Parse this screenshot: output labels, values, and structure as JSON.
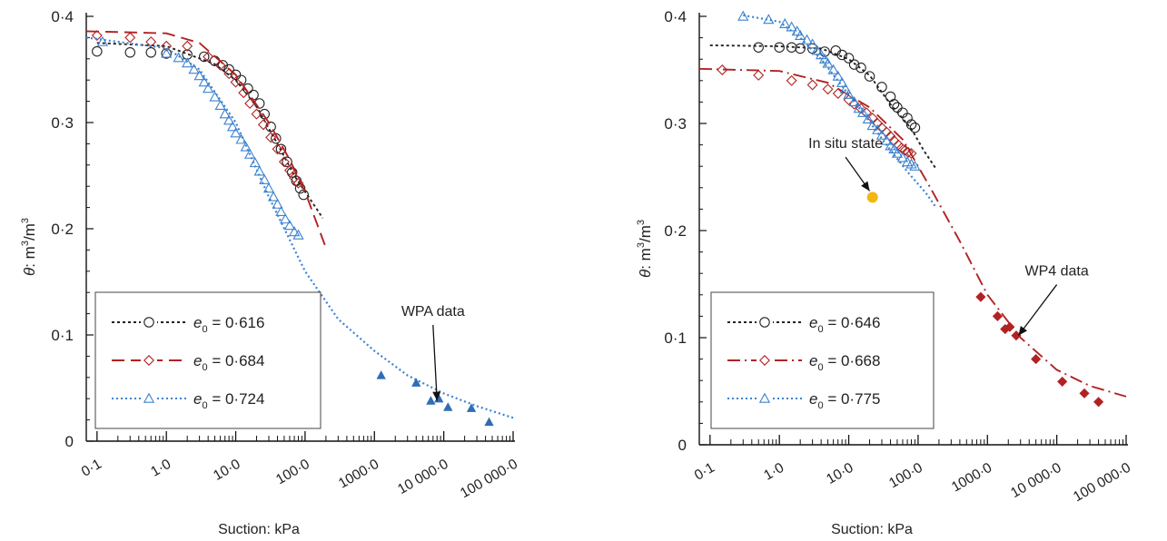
{
  "chart_data": [
    {
      "type": "scatter",
      "xscale": "log",
      "xlim": [
        0.07,
        100000
      ],
      "ylim": [
        0,
        0.4
      ],
      "xlabel": "Suction: kPa",
      "ylabel": "θ: m³/m³",
      "ylabel_parts": {
        "symbol": "θ",
        "unit_base": ": m",
        "unit_exp1": "3",
        "unit_mid": "/m",
        "unit_exp2": "3"
      },
      "xtick_values": [
        0.1,
        1,
        10,
        100,
        1000,
        10000,
        100000
      ],
      "xtick_labels": [
        "0·1",
        "1·0",
        "10·0",
        "100·0",
        "1000·0",
        "10 000·0",
        "100 000·0"
      ],
      "ytick_values": [
        0,
        0.1,
        0.2,
        0.3,
        0.4
      ],
      "ytick_labels": [
        "0",
        "0·1",
        "0·2",
        "0·3",
        "0·4"
      ],
      "legend_position": "lower-left",
      "series": [
        {
          "label_prefix": "e",
          "label_sub": "0",
          "label_value": " = 0·616",
          "color": "#222222",
          "dash": "3,3",
          "marker": "circle",
          "curve": [
            [
              0.1,
              0.375
            ],
            [
              1,
              0.372
            ],
            [
              5,
              0.355
            ],
            [
              10,
              0.34
            ],
            [
              20,
              0.315
            ],
            [
              40,
              0.28
            ],
            [
              70,
              0.25
            ],
            [
              100,
              0.235
            ],
            [
              180,
              0.21
            ]
          ],
          "points": [
            [
              0.1,
              0.367
            ],
            [
              0.3,
              0.366
            ],
            [
              0.6,
              0.366
            ],
            [
              1,
              0.365
            ],
            [
              2,
              0.364
            ],
            [
              3.5,
              0.362
            ],
            [
              5,
              0.358
            ],
            [
              6.5,
              0.354
            ],
            [
              8,
              0.35
            ],
            [
              10,
              0.345
            ],
            [
              12,
              0.34
            ],
            [
              15,
              0.332
            ],
            [
              18,
              0.326
            ],
            [
              22,
              0.318
            ],
            [
              26,
              0.308
            ],
            [
              32,
              0.296
            ],
            [
              38,
              0.285
            ],
            [
              45,
              0.275
            ],
            [
              55,
              0.263
            ],
            [
              65,
              0.253
            ],
            [
              75,
              0.245
            ],
            [
              85,
              0.238
            ],
            [
              95,
              0.232
            ]
          ]
        },
        {
          "label_prefix": "e",
          "label_sub": "0",
          "label_value": " = 0·684",
          "color": "#b22222",
          "dash": "14,7",
          "marker": "diamond",
          "curve": [
            [
              0.07,
              0.386
            ],
            [
              1,
              0.384
            ],
            [
              3,
              0.375
            ],
            [
              10,
              0.345
            ],
            [
              30,
              0.3
            ],
            [
              60,
              0.265
            ],
            [
              100,
              0.235
            ],
            [
              200,
              0.182
            ]
          ],
          "points": [
            [
              0.1,
              0.382
            ],
            [
              0.3,
              0.38
            ],
            [
              0.6,
              0.376
            ],
            [
              1,
              0.372
            ],
            [
              2,
              0.372
            ],
            [
              4,
              0.362
            ],
            [
              6,
              0.354
            ],
            [
              8,
              0.346
            ],
            [
              10,
              0.338
            ],
            [
              13,
              0.328
            ],
            [
              16,
              0.318
            ],
            [
              20,
              0.308
            ],
            [
              25,
              0.298
            ],
            [
              32,
              0.286
            ],
            [
              40,
              0.275
            ],
            [
              50,
              0.263
            ],
            [
              60,
              0.255
            ],
            [
              70,
              0.248
            ],
            [
              80,
              0.243
            ]
          ]
        },
        {
          "label_prefix": "e",
          "label_sub": "0",
          "label_value": " = 0·724",
          "color": "#3b82d0",
          "dash": "2,3",
          "marker": "triangle",
          "curve": [
            [
              0.07,
              0.38
            ],
            [
              1,
              0.37
            ],
            [
              3,
              0.35
            ],
            [
              10,
              0.3
            ],
            [
              30,
              0.23
            ],
            [
              100,
              0.16
            ],
            [
              300,
              0.115
            ],
            [
              1000,
              0.085
            ],
            [
              3000,
              0.062
            ],
            [
              10000,
              0.045
            ],
            [
              30000,
              0.033
            ],
            [
              100000,
              0.022
            ]
          ],
          "points": [
            [
              0.12,
              0.376
            ],
            [
              1,
              0.365
            ],
            [
              1.5,
              0.361
            ],
            [
              2,
              0.356
            ],
            [
              2.5,
              0.35
            ],
            [
              3,
              0.344
            ],
            [
              3.5,
              0.338
            ],
            [
              4,
              0.332
            ],
            [
              5,
              0.324
            ],
            [
              6,
              0.316
            ],
            [
              7,
              0.308
            ],
            [
              8,
              0.302
            ],
            [
              9,
              0.296
            ],
            [
              10,
              0.29
            ],
            [
              12,
              0.284
            ],
            [
              14,
              0.277
            ],
            [
              16,
              0.27
            ],
            [
              19,
              0.262
            ],
            [
              22,
              0.254
            ],
            [
              26,
              0.246
            ],
            [
              30,
              0.238
            ],
            [
              35,
              0.23
            ],
            [
              40,
              0.223
            ],
            [
              45,
              0.216
            ],
            [
              52,
              0.209
            ],
            [
              60,
              0.203
            ],
            [
              70,
              0.197
            ],
            [
              80,
              0.194
            ]
          ]
        }
      ],
      "extra_points": [
        {
          "marker": "filled-triangle",
          "color": "#2f6db5",
          "points": [
            [
              1250,
              0.062
            ],
            [
              4000,
              0.055
            ],
            [
              6500,
              0.038
            ],
            [
              8500,
              0.04
            ],
            [
              11500,
              0.032
            ],
            [
              25000,
              0.031
            ],
            [
              45000,
              0.018
            ]
          ]
        }
      ],
      "annotations": [
        {
          "text": "WPA data",
          "anchor": [
            7000,
            0.118
          ],
          "arrow_to": [
            8000,
            0.038
          ]
        }
      ]
    },
    {
      "type": "scatter",
      "xscale": "log",
      "xlim": [
        0.07,
        100000
      ],
      "ylim": [
        0,
        0.4
      ],
      "xlabel": "Suction: kPa",
      "ylabel": "θ: m³/m³",
      "ylabel_parts": {
        "symbol": "θ",
        "unit_base": ": m",
        "unit_exp1": "3",
        "unit_mid": "/m",
        "unit_exp2": "3"
      },
      "xtick_values": [
        0.1,
        1,
        10,
        100,
        1000,
        10000,
        100000
      ],
      "xtick_labels": [
        "0·1",
        "1·0",
        "10·0",
        "100·0",
        "1000·0",
        "10 000·0",
        "100 000·0"
      ],
      "ytick_values": [
        0,
        0.1,
        0.2,
        0.3,
        0.4
      ],
      "ytick_labels": [
        "0",
        "0·1",
        "0·2",
        "0·3",
        "0·4"
      ],
      "legend_position": "lower-left",
      "series": [
        {
          "label_prefix": "e",
          "label_sub": "0",
          "label_value": " = 0·646",
          "color": "#222222",
          "dash": "3,3",
          "marker": "circle",
          "curve": [
            [
              0.1,
              0.373
            ],
            [
              1,
              0.372
            ],
            [
              4,
              0.37
            ],
            [
              10,
              0.36
            ],
            [
              20,
              0.345
            ],
            [
              40,
              0.318
            ],
            [
              80,
              0.295
            ],
            [
              120,
              0.275
            ],
            [
              180,
              0.258
            ]
          ],
          "points": [
            [
              0.5,
              0.371
            ],
            [
              1,
              0.371
            ],
            [
              1.5,
              0.371
            ],
            [
              2,
              0.37
            ],
            [
              3,
              0.37
            ],
            [
              4.5,
              0.367
            ],
            [
              6.5,
              0.368
            ],
            [
              8,
              0.364
            ],
            [
              10,
              0.361
            ],
            [
              12,
              0.355
            ],
            [
              15,
              0.352
            ],
            [
              20,
              0.344
            ],
            [
              30,
              0.334
            ],
            [
              40,
              0.325
            ],
            [
              45,
              0.318
            ],
            [
              50,
              0.315
            ],
            [
              60,
              0.31
            ],
            [
              70,
              0.305
            ],
            [
              80,
              0.299
            ],
            [
              90,
              0.296
            ]
          ]
        },
        {
          "label_prefix": "e",
          "label_sub": "0",
          "label_value": " = 0·668",
          "color": "#b22222",
          "dash": "14,5,2,5",
          "marker": "diamond",
          "curve": [
            [
              0.07,
              0.351
            ],
            [
              1,
              0.349
            ],
            [
              5,
              0.338
            ],
            [
              20,
              0.315
            ],
            [
              60,
              0.285
            ],
            [
              150,
              0.24
            ],
            [
              400,
              0.19
            ],
            [
              1000,
              0.14
            ],
            [
              3000,
              0.1
            ],
            [
              10000,
              0.07
            ],
            [
              30000,
              0.055
            ],
            [
              100000,
              0.045
            ]
          ],
          "points": [
            [
              0.15,
              0.35
            ],
            [
              0.5,
              0.345
            ],
            [
              1.5,
              0.34
            ],
            [
              3,
              0.336
            ],
            [
              5,
              0.332
            ],
            [
              7,
              0.328
            ],
            [
              10,
              0.322
            ],
            [
              12,
              0.318
            ],
            [
              15,
              0.314
            ],
            [
              18,
              0.31
            ],
            [
              22,
              0.305
            ],
            [
              26,
              0.3
            ],
            [
              30,
              0.296
            ],
            [
              35,
              0.292
            ],
            [
              40,
              0.288
            ],
            [
              45,
              0.284
            ],
            [
              52,
              0.28
            ],
            [
              58,
              0.277
            ],
            [
              65,
              0.275
            ],
            [
              72,
              0.273
            ],
            [
              80,
              0.272
            ]
          ]
        },
        {
          "label_prefix": "e",
          "label_sub": "0",
          "label_value": " = 0·775",
          "color": "#3b82d0",
          "dash": "2,3",
          "marker": "triangle",
          "curve": [
            [
              0.3,
              0.401
            ],
            [
              1,
              0.395
            ],
            [
              2,
              0.38
            ],
            [
              4,
              0.36
            ],
            [
              8,
              0.335
            ],
            [
              16,
              0.31
            ],
            [
              35,
              0.28
            ],
            [
              70,
              0.255
            ],
            [
              130,
              0.235
            ],
            [
              180,
              0.222
            ]
          ],
          "points": [
            [
              0.3,
              0.4
            ],
            [
              0.7,
              0.397
            ],
            [
              1.2,
              0.393
            ],
            [
              1.5,
              0.39
            ],
            [
              1.8,
              0.386
            ],
            [
              2,
              0.382
            ],
            [
              2.5,
              0.378
            ],
            [
              3,
              0.374
            ],
            [
              3.5,
              0.368
            ],
            [
              4,
              0.364
            ],
            [
              4.5,
              0.36
            ],
            [
              5,
              0.356
            ],
            [
              6,
              0.35
            ],
            [
              7,
              0.344
            ],
            [
              8,
              0.338
            ],
            [
              9,
              0.332
            ],
            [
              10,
              0.327
            ],
            [
              12,
              0.32
            ],
            [
              14,
              0.314
            ],
            [
              16,
              0.31
            ],
            [
              19,
              0.304
            ],
            [
              22,
              0.298
            ],
            [
              26,
              0.294
            ],
            [
              30,
              0.289
            ],
            [
              35,
              0.284
            ],
            [
              40,
              0.279
            ],
            [
              45,
              0.276
            ],
            [
              50,
              0.272
            ],
            [
              60,
              0.268
            ],
            [
              70,
              0.264
            ],
            [
              80,
              0.262
            ],
            [
              90,
              0.26
            ]
          ]
        }
      ],
      "extra_points": [
        {
          "marker": "filled-diamond",
          "color": "#b22222",
          "points": [
            [
              800,
              0.138
            ],
            [
              1400,
              0.12
            ],
            [
              1800,
              0.108
            ],
            [
              2100,
              0.11
            ],
            [
              2600,
              0.102
            ],
            [
              5000,
              0.08
            ],
            [
              12000,
              0.059
            ],
            [
              25000,
              0.048
            ],
            [
              40000,
              0.04
            ]
          ]
        }
      ],
      "annotations": [
        {
          "text": "WP4 data",
          "anchor": [
            10000,
            0.158
          ],
          "arrow_to": [
            2800,
            0.102
          ]
        },
        {
          "text": "In situ state",
          "anchor": [
            9,
            0.277
          ],
          "arrow_to": [
            20,
            0.237
          ]
        }
      ],
      "special_points": [
        {
          "x": 22,
          "y": 0.231,
          "color": "#f2b810",
          "label": "In situ state"
        }
      ]
    }
  ]
}
